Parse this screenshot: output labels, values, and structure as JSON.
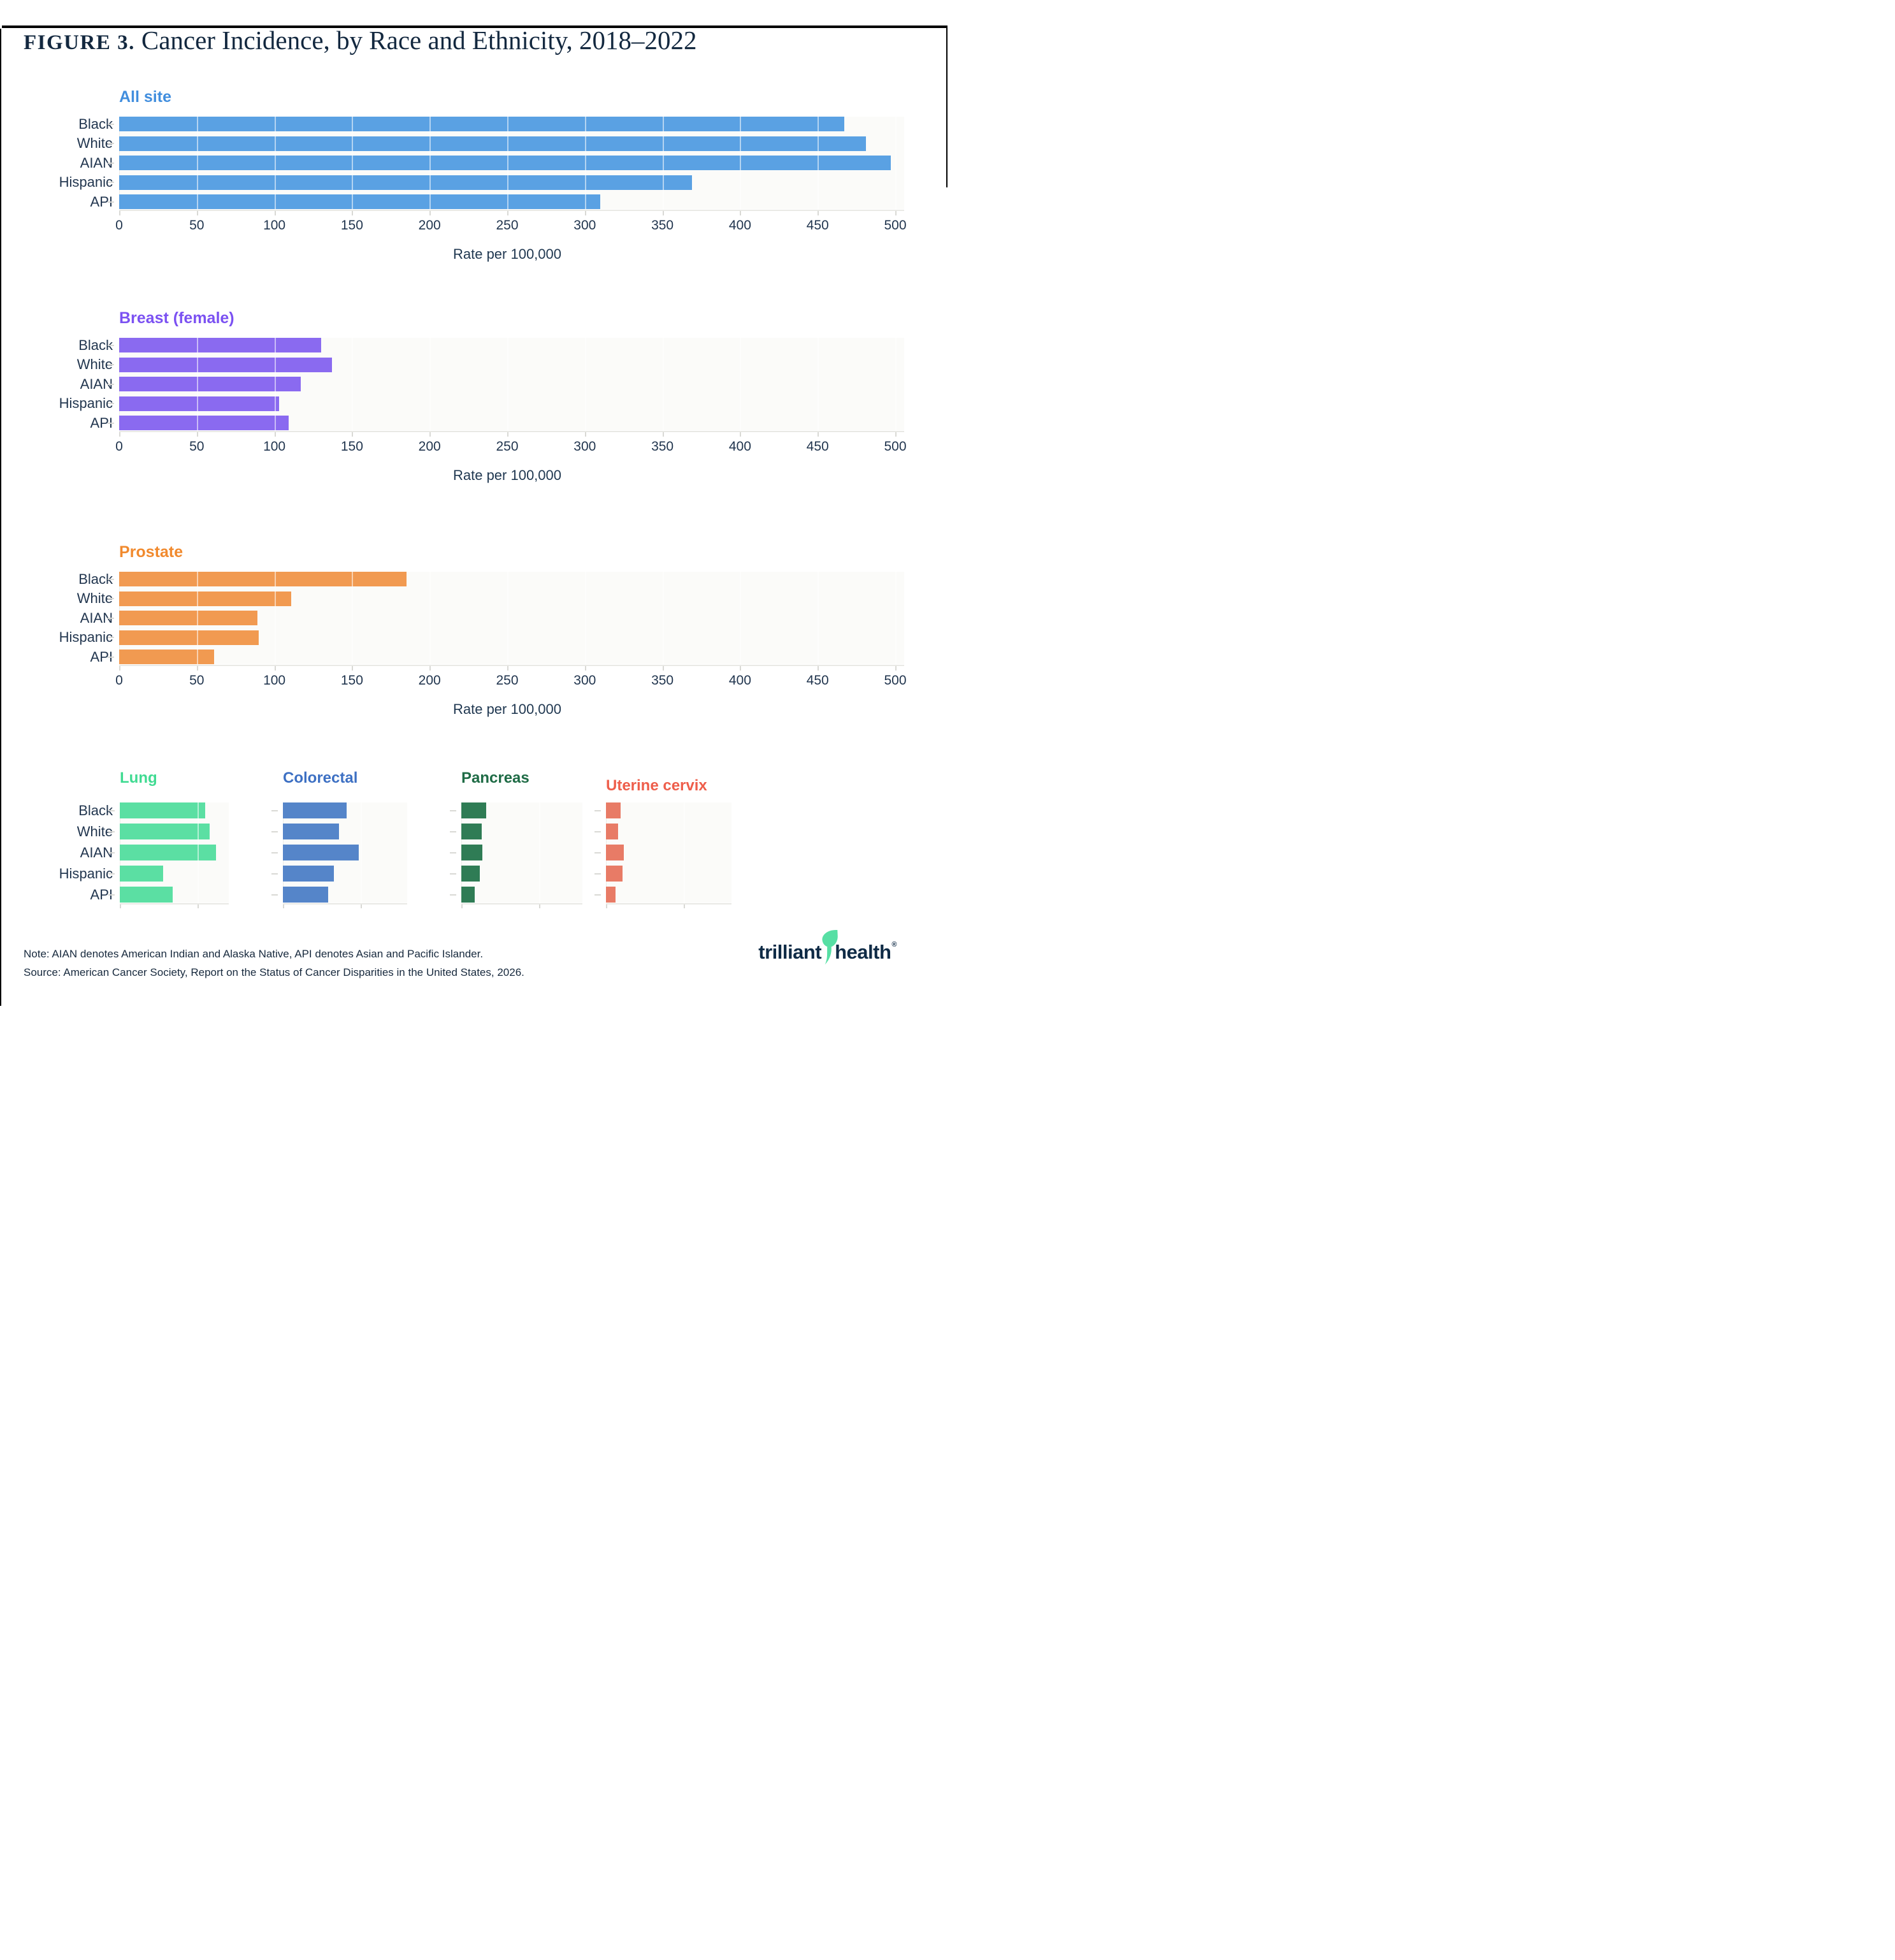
{
  "figure": {
    "label": "FIGURE 3.",
    "title": "Cancer Incidence, by Race and Ethnicity, 2018–2022"
  },
  "categories": [
    "Black",
    "White",
    "AIAN",
    "Hispanic",
    "API"
  ],
  "xlabel": "Rate per 100,000",
  "chart_data": [
    {
      "type": "bar",
      "orientation": "horizontal",
      "size": "large",
      "title": "All site",
      "title_color": "#418ede",
      "bar_color": "#5aa1e3",
      "categories": [
        "Black",
        "White",
        "AIAN",
        "Hispanic",
        "API"
      ],
      "values": [
        467,
        481,
        497,
        369,
        310
      ],
      "xlim": [
        0,
        500
      ],
      "xticks": [
        0,
        50,
        100,
        150,
        200,
        250,
        300,
        350,
        400,
        450,
        500
      ],
      "show_tick_labels": true,
      "xlabel": "Rate per 100,000",
      "grid": "white-overlay",
      "legend": "none"
    },
    {
      "type": "bar",
      "orientation": "horizontal",
      "size": "large",
      "title": "Breast (female)",
      "title_color": "#7b51f2",
      "bar_color": "#8a6af0",
      "categories": [
        "Black",
        "White",
        "AIAN",
        "Hispanic",
        "API"
      ],
      "values": [
        130,
        137,
        117,
        103,
        109
      ],
      "xlim": [
        0,
        500
      ],
      "xticks": [
        0,
        50,
        100,
        150,
        200,
        250,
        300,
        350,
        400,
        450,
        500
      ],
      "show_tick_labels": true,
      "xlabel": "Rate per 100,000",
      "grid": "white-overlay",
      "legend": "none"
    },
    {
      "type": "bar",
      "orientation": "horizontal",
      "size": "large",
      "title": "Prostate",
      "title_color": "#f18a2e",
      "bar_color": "#f19a51",
      "categories": [
        "Black",
        "White",
        "AIAN",
        "Hispanic",
        "API"
      ],
      "values": [
        185,
        111,
        89,
        90,
        61
      ],
      "xlim": [
        0,
        500
      ],
      "xticks": [
        0,
        50,
        100,
        150,
        200,
        250,
        300,
        350,
        400,
        450,
        500
      ],
      "show_tick_labels": true,
      "xlabel": "Rate per 100,000",
      "grid": "white-overlay",
      "legend": "none"
    },
    {
      "type": "bar",
      "orientation": "horizontal",
      "size": "small",
      "title": "Lung",
      "title_color": "#40db92",
      "bar_color": "#5bdfa3",
      "categories": [
        "Black",
        "White",
        "AIAN",
        "Hispanic",
        "API"
      ],
      "values": [
        55,
        58,
        62,
        28,
        34
      ],
      "xlim": [
        0,
        70
      ],
      "xticks": [
        0,
        50
      ],
      "show_tick_labels": false,
      "grid": "white-overlay",
      "legend": "none"
    },
    {
      "type": "bar",
      "orientation": "horizontal",
      "size": "small",
      "title": "Colorectal",
      "title_color": "#3d70c3",
      "bar_color": "#5585c9",
      "categories": [
        "Black",
        "White",
        "AIAN",
        "Hispanic",
        "API"
      ],
      "values": [
        41,
        36,
        49,
        33,
        29
      ],
      "xlim": [
        0,
        80
      ],
      "xticks": [
        0,
        50
      ],
      "show_tick_labels": false,
      "grid": "white-overlay",
      "legend": "none"
    },
    {
      "type": "bar",
      "orientation": "horizontal",
      "size": "small",
      "title": "Pancreas",
      "title_color": "#1e6b45",
      "bar_color": "#2f7c55",
      "categories": [
        "Black",
        "White",
        "AIAN",
        "Hispanic",
        "API"
      ],
      "values": [
        16,
        13,
        13.5,
        12,
        8.5
      ],
      "xlim": [
        0,
        78
      ],
      "xticks": [
        0,
        50
      ],
      "show_tick_labels": false,
      "grid": "white-overlay",
      "legend": "none"
    },
    {
      "type": "bar",
      "orientation": "horizontal",
      "size": "small",
      "title": "Uterine cervix",
      "title_color": "#ee5e4b",
      "bar_color": "#e87b66",
      "categories": [
        "Black",
        "White",
        "AIAN",
        "Hispanic",
        "API"
      ],
      "values": [
        9.5,
        8,
        11.5,
        10.5,
        6
      ],
      "xlim": [
        0,
        81
      ],
      "xticks": [
        0,
        50
      ],
      "show_tick_labels": false,
      "grid": "white-overlay",
      "legend": "none"
    }
  ],
  "notes": {
    "line1": "Note: AIAN denotes American Indian and Alaska Native, API denotes Asian and Pacific Islander.",
    "line2": "Source: American Cancer Society, Report on the Status of Cancer Disparities in the United States, 2026."
  },
  "logo": {
    "word1": "trilliant",
    "word2": "health",
    "registered": "®",
    "swoosh_color": "#57dfa4",
    "text_color": "#0f2b46"
  },
  "colors": {
    "title_navy": "#13283f",
    "label_navy": "#22364f",
    "axis_line": "#e9e9e5",
    "tick_dash": "#d9d9d5",
    "plot_bg": "#fbfbf9"
  }
}
